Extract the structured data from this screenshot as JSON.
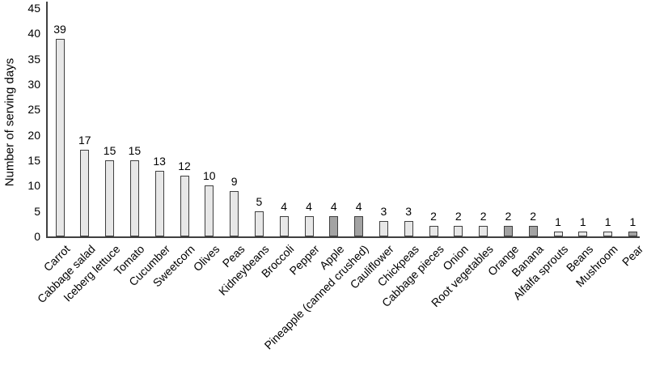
{
  "chart_data": {
    "type": "bar",
    "title": "",
    "xlabel": "",
    "ylabel": "Number of serving days",
    "ylim": [
      0,
      45
    ],
    "yticks": [
      0,
      5,
      10,
      15,
      20,
      25,
      30,
      35,
      40,
      45
    ],
    "grid": false,
    "legend": "none",
    "categories": [
      "Carrot",
      "Cabbage salad",
      "Iceberg lettuce",
      "Tomato",
      "Cucumber",
      "Sweetcorn",
      "Olives",
      "Peas",
      "Kidneybeans",
      "Broccoli",
      "Pepper",
      "Apple",
      "Pineapple (canned crushed)",
      "Cauliflower",
      "Chickpeas",
      "Cabbage pieces",
      "Onion",
      "Root vegetables",
      "Orange",
      "Banana",
      "Alfalfa sprouts",
      "Beans",
      "Mushroom",
      "Pear"
    ],
    "values": [
      39,
      17,
      15,
      15,
      13,
      12,
      10,
      9,
      5,
      4,
      4,
      4,
      4,
      3,
      3,
      2,
      2,
      2,
      2,
      2,
      1,
      1,
      1,
      1
    ],
    "data_labels_shown": true,
    "highlighted_categories": [
      "Apple",
      "Pineapple (canned crushed)",
      "Orange",
      "Banana",
      "Pear"
    ],
    "highlight_indices": [
      11,
      12,
      18,
      19,
      23
    ],
    "colors": {
      "bar_fill": "#e7e7e7",
      "bar_fill_highlight": "#a3a3a3",
      "bar_border": "#404040",
      "axis": "#404040",
      "text": "#000000"
    }
  }
}
